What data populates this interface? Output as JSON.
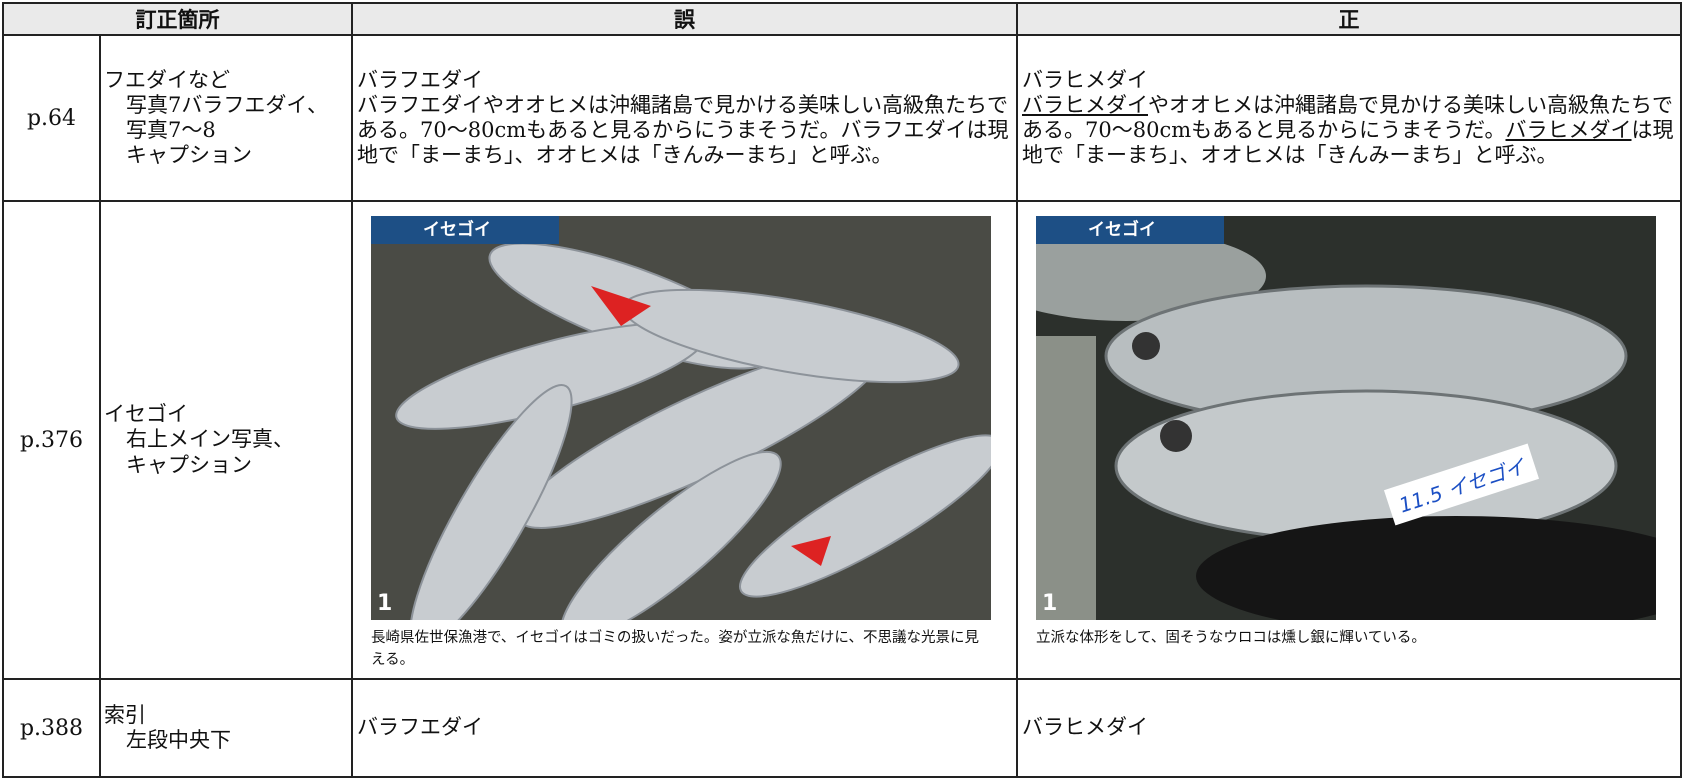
{
  "header": {
    "location": "訂正箇所",
    "wrong": "誤",
    "right": "正"
  },
  "rows": [
    {
      "page": "p.64",
      "location": [
        "フエダイなど",
        "写真7バラフエダイ、",
        "写真7～8",
        "キャプション"
      ],
      "wrong": {
        "title": "バラフエダイ",
        "body": [
          {
            "text": "バラフエダイやオオヒメは沖縄諸島で見かける美味しい高級魚たちである。70～80cmもあると見るからにうまそうだ。バラフエダイは現地で「まーまち」、オオヒメは「きんみーまち」と呼ぶ。",
            "underline": false
          }
        ]
      },
      "right": {
        "title": "バラヒメダイ",
        "body": [
          {
            "text": "バラヒメダイ",
            "underline": true
          },
          {
            "text": "やオオヒメは沖縄諸島で見かける美味しい高級魚たちである。70～80cmもあると見るからにうまそうだ。",
            "underline": false
          },
          {
            "text": "バラヒメダイ",
            "underline": true
          },
          {
            "text": "は現地で「まーまち」、オオヒメは「きんみーまち」と呼ぶ。",
            "underline": false
          }
        ]
      }
    },
    {
      "page": "p.376",
      "location": [
        "イセゴイ",
        "右上メイン写真、",
        "キャプション"
      ],
      "wrong": {
        "photo_label": "イセゴイ",
        "photo_number": "1",
        "caption": "長崎県佐世保漁港で、イセゴイはゴミの扱いだった。姿が立派な魚だけに、不思議な光景に見える。"
      },
      "right": {
        "photo_label": "イセゴイ",
        "photo_number": "1",
        "photo_tag": "11.5 イセゴイ",
        "caption": "立派な体形をして、固そうなウロコは燻し銀に輝いている。"
      }
    },
    {
      "page": "p.388",
      "location": [
        "索引",
        "左段中央下"
      ],
      "wrong": {
        "title": "バラフエダイ"
      },
      "right": {
        "title": "バラヒメダイ"
      }
    }
  ]
}
